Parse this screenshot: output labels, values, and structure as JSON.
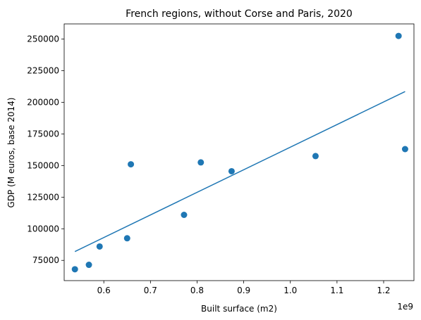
{
  "chart_data": {
    "type": "scatter",
    "title": "French regions, without Corse and Paris, 2020",
    "xlabel": "Built surface (m2)",
    "ylabel": "GDP (M euros, base 2014)",
    "x_offset_label": "1e9",
    "xlim": [
      0.515,
      1.265
    ],
    "ylim": [
      59000,
      262000
    ],
    "x_ticks": [
      0.6,
      0.7,
      0.8,
      0.9,
      1.0,
      1.1,
      1.2
    ],
    "x_tick_labels": [
      "0.6",
      "0.7",
      "0.8",
      "0.9",
      "1.0",
      "1.1",
      "1.2"
    ],
    "y_ticks": [
      75000,
      100000,
      125000,
      150000,
      175000,
      200000,
      225000,
      250000
    ],
    "y_tick_labels": [
      "75000",
      "100000",
      "125000",
      "150000",
      "175000",
      "200000",
      "225000",
      "250000"
    ],
    "grid": false,
    "series": [
      {
        "kind": "scatter",
        "color": "#1f77b4",
        "points": [
          {
            "x": 0.538,
            "y": 68000
          },
          {
            "x": 0.568,
            "y": 71500
          },
          {
            "x": 0.591,
            "y": 86000
          },
          {
            "x": 0.65,
            "y": 92500
          },
          {
            "x": 0.658,
            "y": 151000
          },
          {
            "x": 0.772,
            "y": 111000
          },
          {
            "x": 0.808,
            "y": 152500
          },
          {
            "x": 0.874,
            "y": 145500
          },
          {
            "x": 1.054,
            "y": 157500
          },
          {
            "x": 1.232,
            "y": 252500
          },
          {
            "x": 1.246,
            "y": 163000
          }
        ]
      },
      {
        "kind": "line",
        "color": "#1f77b4",
        "points": [
          {
            "x": 0.538,
            "y": 82000
          },
          {
            "x": 1.246,
            "y": 208500
          }
        ]
      }
    ]
  }
}
